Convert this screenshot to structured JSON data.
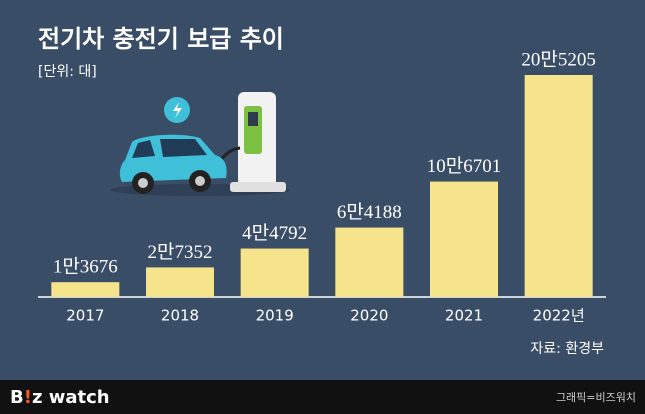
{
  "chart_data": {
    "type": "bar",
    "title": "전기차 충전기 보급 추이",
    "subtitle": "[단위: 대]",
    "categories": [
      "2017",
      "2018",
      "2019",
      "2020",
      "2021",
      "2022년"
    ],
    "values": [
      13676,
      27352,
      44792,
      64188,
      106701,
      205205
    ],
    "value_labels": [
      "1만3676",
      "2만7352",
      "4만4792",
      "6만4188",
      "10만6701",
      "20만5205"
    ],
    "color": "#f6e48c",
    "source": "자료: 환경부"
  },
  "footer": {
    "logo": [
      "B",
      "!",
      "z watch"
    ],
    "credit": "그래픽=비즈워치"
  }
}
